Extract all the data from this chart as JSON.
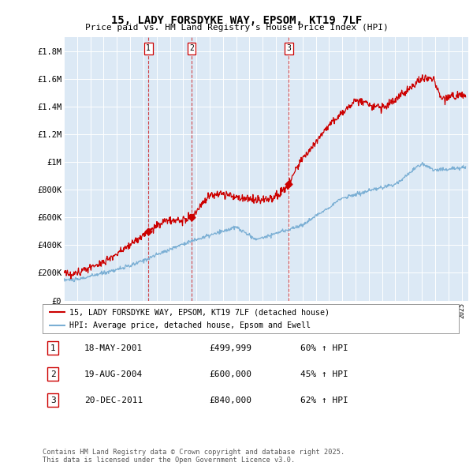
{
  "title": "15, LADY FORSDYKE WAY, EPSOM, KT19 7LF",
  "subtitle": "Price paid vs. HM Land Registry's House Price Index (HPI)",
  "plot_bg_color": "#dce9f5",
  "ylabel_ticks": [
    "£0",
    "£200K",
    "£400K",
    "£600K",
    "£800K",
    "£1M",
    "£1.2M",
    "£1.4M",
    "£1.6M",
    "£1.8M"
  ],
  "ylabel_values": [
    0,
    200000,
    400000,
    600000,
    800000,
    1000000,
    1200000,
    1400000,
    1600000,
    1800000
  ],
  "ylim": [
    0,
    1900000
  ],
  "xlim_start": 1995.0,
  "xlim_end": 2025.5,
  "transactions": [
    {
      "label": "1",
      "date_str": "18-MAY-2001",
      "year": 2001.37,
      "price": 499999,
      "pct": "60% ↑ HPI"
    },
    {
      "label": "2",
      "date_str": "19-AUG-2004",
      "year": 2004.63,
      "price": 600000,
      "pct": "45% ↑ HPI"
    },
    {
      "label": "3",
      "date_str": "20-DEC-2011",
      "year": 2011.96,
      "price": 840000,
      "pct": "62% ↑ HPI"
    }
  ],
  "legend_label_red": "15, LADY FORSDYKE WAY, EPSOM, KT19 7LF (detached house)",
  "legend_label_blue": "HPI: Average price, detached house, Epsom and Ewell",
  "footer_text": "Contains HM Land Registry data © Crown copyright and database right 2025.\nThis data is licensed under the Open Government Licence v3.0.",
  "table_rows": [
    [
      "1",
      "18-MAY-2001",
      "£499,999",
      "60% ↑ HPI"
    ],
    [
      "2",
      "19-AUG-2004",
      "£600,000",
      "45% ↑ HPI"
    ],
    [
      "3",
      "20-DEC-2011",
      "£840,000",
      "62% ↑ HPI"
    ]
  ],
  "red_line_color": "#cc0000",
  "blue_line_color": "#7bafd4"
}
